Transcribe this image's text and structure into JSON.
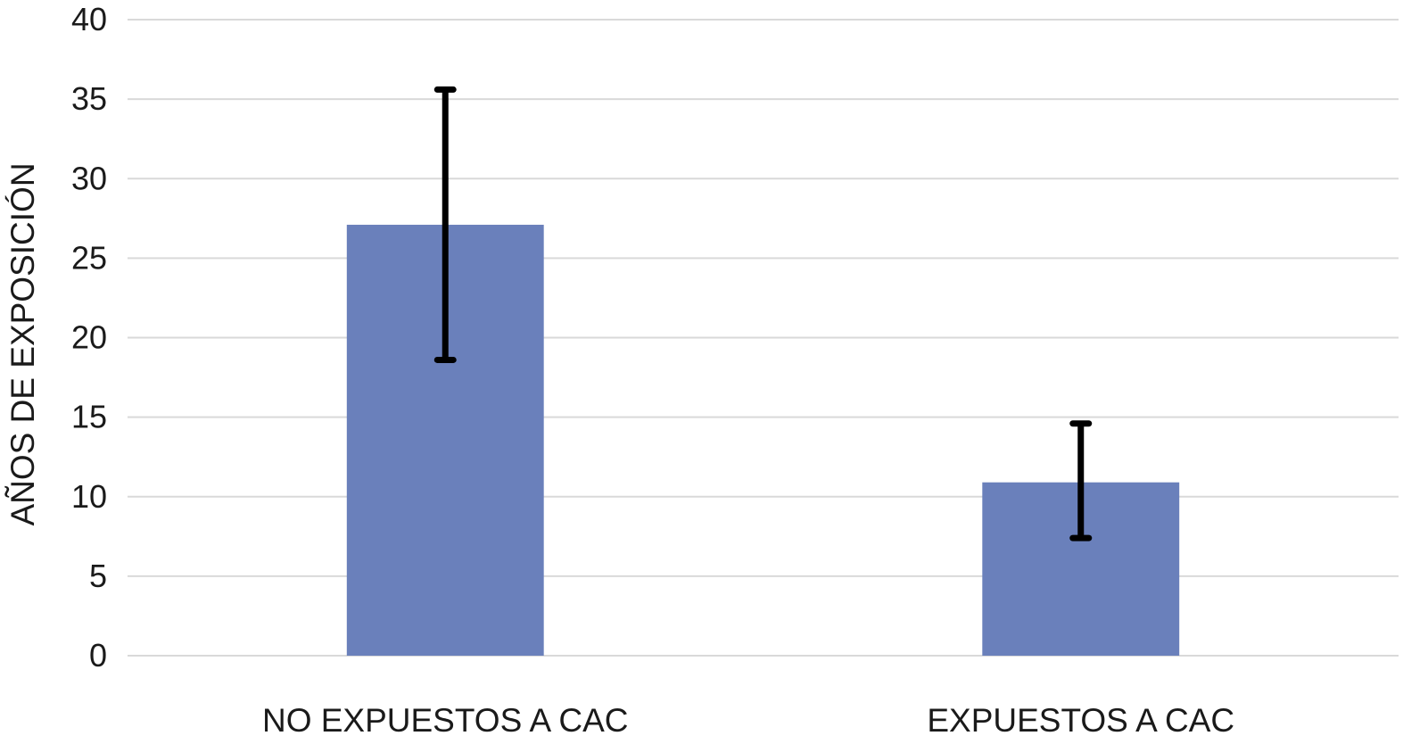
{
  "chart_data": {
    "type": "bar",
    "title": "",
    "xlabel": "",
    "ylabel": "AÑOS DE EXPOSICIÓN",
    "ylim": [
      0,
      40
    ],
    "yticks": [
      0,
      5,
      10,
      15,
      20,
      25,
      30,
      35,
      40
    ],
    "grid": true,
    "legend": "none",
    "categories": [
      "NO EXPUESTOS A CAC",
      "EXPUESTOS A CAC"
    ],
    "values": [
      27.1,
      10.9
    ],
    "error_bars": [
      {
        "low": 18.6,
        "high": 35.6
      },
      {
        "low": 7.4,
        "high": 14.6
      }
    ],
    "colors": {
      "bar": "#6a80bb",
      "error_bar": "#000000",
      "grid": "#d9d9d9",
      "text": "#1a1a1a"
    }
  }
}
